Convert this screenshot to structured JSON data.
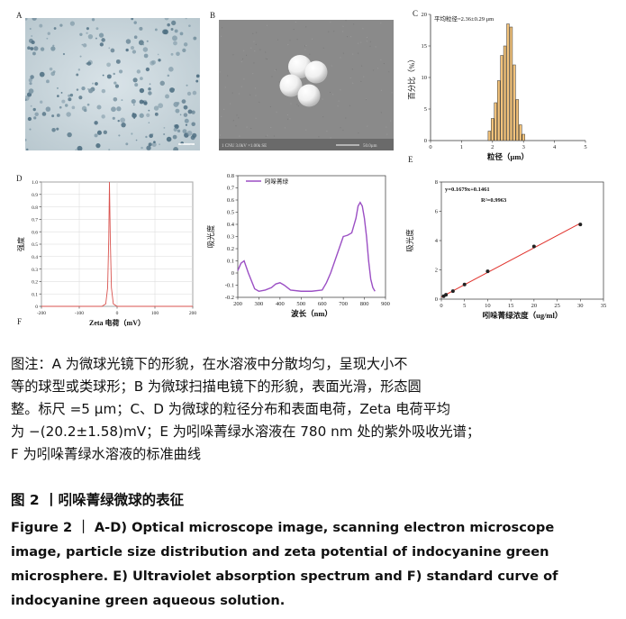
{
  "panels": {
    "A": {
      "label": "A"
    },
    "B": {
      "label": "B",
      "scale_text": "1 CNU 3.0kV ×1.00k SE",
      "scale_bar_text": "50.0µm"
    },
    "C": {
      "label": "C"
    },
    "D": {
      "label": "D"
    },
    "E": {
      "label": "E"
    },
    "F": {
      "label": "F"
    }
  },
  "chart_data": [
    {
      "id": "C",
      "type": "bar",
      "annotation": "平均粒径=2.36±0.29 μm",
      "xlabel": "粒径（μm）",
      "ylabel": "百分比（%）",
      "xlim": [
        0,
        5
      ],
      "ylim": [
        0,
        20
      ],
      "xticks": [
        "0",
        "1",
        "2",
        "3",
        "4",
        "5"
      ],
      "yticks": [
        "0",
        "5",
        "10",
        "15",
        "20"
      ],
      "x": [
        1.9,
        2.0,
        2.1,
        2.2,
        2.3,
        2.4,
        2.5,
        2.6,
        2.7,
        2.8,
        2.9,
        3.0
      ],
      "values": [
        1.5,
        3.5,
        6.0,
        9.5,
        13.5,
        15.0,
        18.5,
        18.0,
        12.0,
        6.5,
        2.5,
        1.0
      ]
    },
    {
      "id": "D",
      "type": "line",
      "xlabel": "Zeta 电荷（mV）",
      "ylabel": "强度",
      "xlim": [
        -200,
        200
      ],
      "ylim": [
        0,
        1.0
      ],
      "xticks": [
        "-200",
        "-100",
        "0",
        "100",
        "200"
      ],
      "yticks": [
        "0",
        "0.1",
        "0.2",
        "0.3",
        "0.4",
        "0.5",
        "0.6",
        "0.7",
        "0.8",
        "0.9",
        "1.0"
      ],
      "x": [
        -200,
        -40,
        -30,
        -25,
        -22,
        -20.2,
        -18,
        -15,
        -10,
        0,
        200
      ],
      "y": [
        0,
        0,
        0.02,
        0.15,
        0.55,
        1.0,
        0.55,
        0.15,
        0.02,
        0,
        0
      ]
    },
    {
      "id": "E",
      "type": "line",
      "legend": "吲哚菁绿",
      "xlabel": "波长（nm）",
      "ylabel": "吸光度",
      "xlim": [
        200,
        900
      ],
      "ylim": [
        -0.2,
        0.8
      ],
      "xticks": [
        "200",
        "300",
        "400",
        "500",
        "600",
        "700",
        "800",
        "900"
      ],
      "yticks": [
        "-0.2",
        "-0.1",
        "0",
        "0.1",
        "0.2",
        "0.3",
        "0.4",
        "0.5",
        "0.6",
        "0.7",
        "0.8"
      ],
      "x": [
        200,
        215,
        230,
        250,
        280,
        300,
        330,
        360,
        380,
        400,
        420,
        450,
        500,
        550,
        600,
        620,
        640,
        660,
        680,
        700,
        720,
        740,
        760,
        770,
        780,
        790,
        800,
        810,
        820,
        830,
        840,
        850
      ],
      "y": [
        0.02,
        0.08,
        0.1,
        0.0,
        -0.13,
        -0.15,
        -0.14,
        -0.12,
        -0.09,
        -0.08,
        -0.1,
        -0.14,
        -0.15,
        -0.15,
        -0.14,
        -0.08,
        0.0,
        0.1,
        0.2,
        0.3,
        0.31,
        0.33,
        0.45,
        0.55,
        0.58,
        0.55,
        0.45,
        0.3,
        0.1,
        -0.05,
        -0.12,
        -0.15
      ]
    },
    {
      "id": "F",
      "type": "scatter",
      "equation": "y=0.1679x+0.1461",
      "r2": "R²=0.9963",
      "xlabel": "吲哚菁绿浓度（ug/ml）",
      "ylabel": "吸光度",
      "xlim": [
        0,
        35
      ],
      "ylim": [
        0,
        8
      ],
      "xticks": [
        "0",
        "5",
        "10",
        "15",
        "20",
        "25",
        "30",
        "35"
      ],
      "yticks": [
        "0",
        "2",
        "4",
        "6",
        "8"
      ],
      "x": [
        0.5,
        1,
        2.5,
        5,
        10,
        20,
        30
      ],
      "y": [
        0.2,
        0.3,
        0.55,
        1.0,
        1.9,
        3.6,
        5.1
      ],
      "fit": {
        "slope": 0.1679,
        "intercept": 0.1461
      }
    }
  ],
  "caption": {
    "lines": [
      "图注：A 为微球光镜下的形貌，在水溶液中分散均匀，呈现大小不",
      "等的球型或类球形；B 为微球扫描电镜下的形貌，表面光滑，形态圆",
      "整。标尺 =5 μm；C、D 为微球的粒径分布和表面电荷，Zeta 电荷平均",
      "为 −(20.2±1.58)mV；E 为吲哚菁绿水溶液在 780 nm 处的紫外吸收光谱；",
      "F 为吲哚菁绿水溶液的标准曲线"
    ]
  },
  "figure_title_cn": "图 2 丨吲哚菁绿微球的表征",
  "figure_title_en": {
    "lines": [
      "Figure 2 ｜ A-D) Optical microscope image, scanning electron microscope",
      "image, particle size distribution and zeta potential of  indocyanine green",
      "microsphere. E) Ultraviolet absorption spectrum and F) standard curve of",
      "indocyanine green aqueous solution."
    ]
  }
}
